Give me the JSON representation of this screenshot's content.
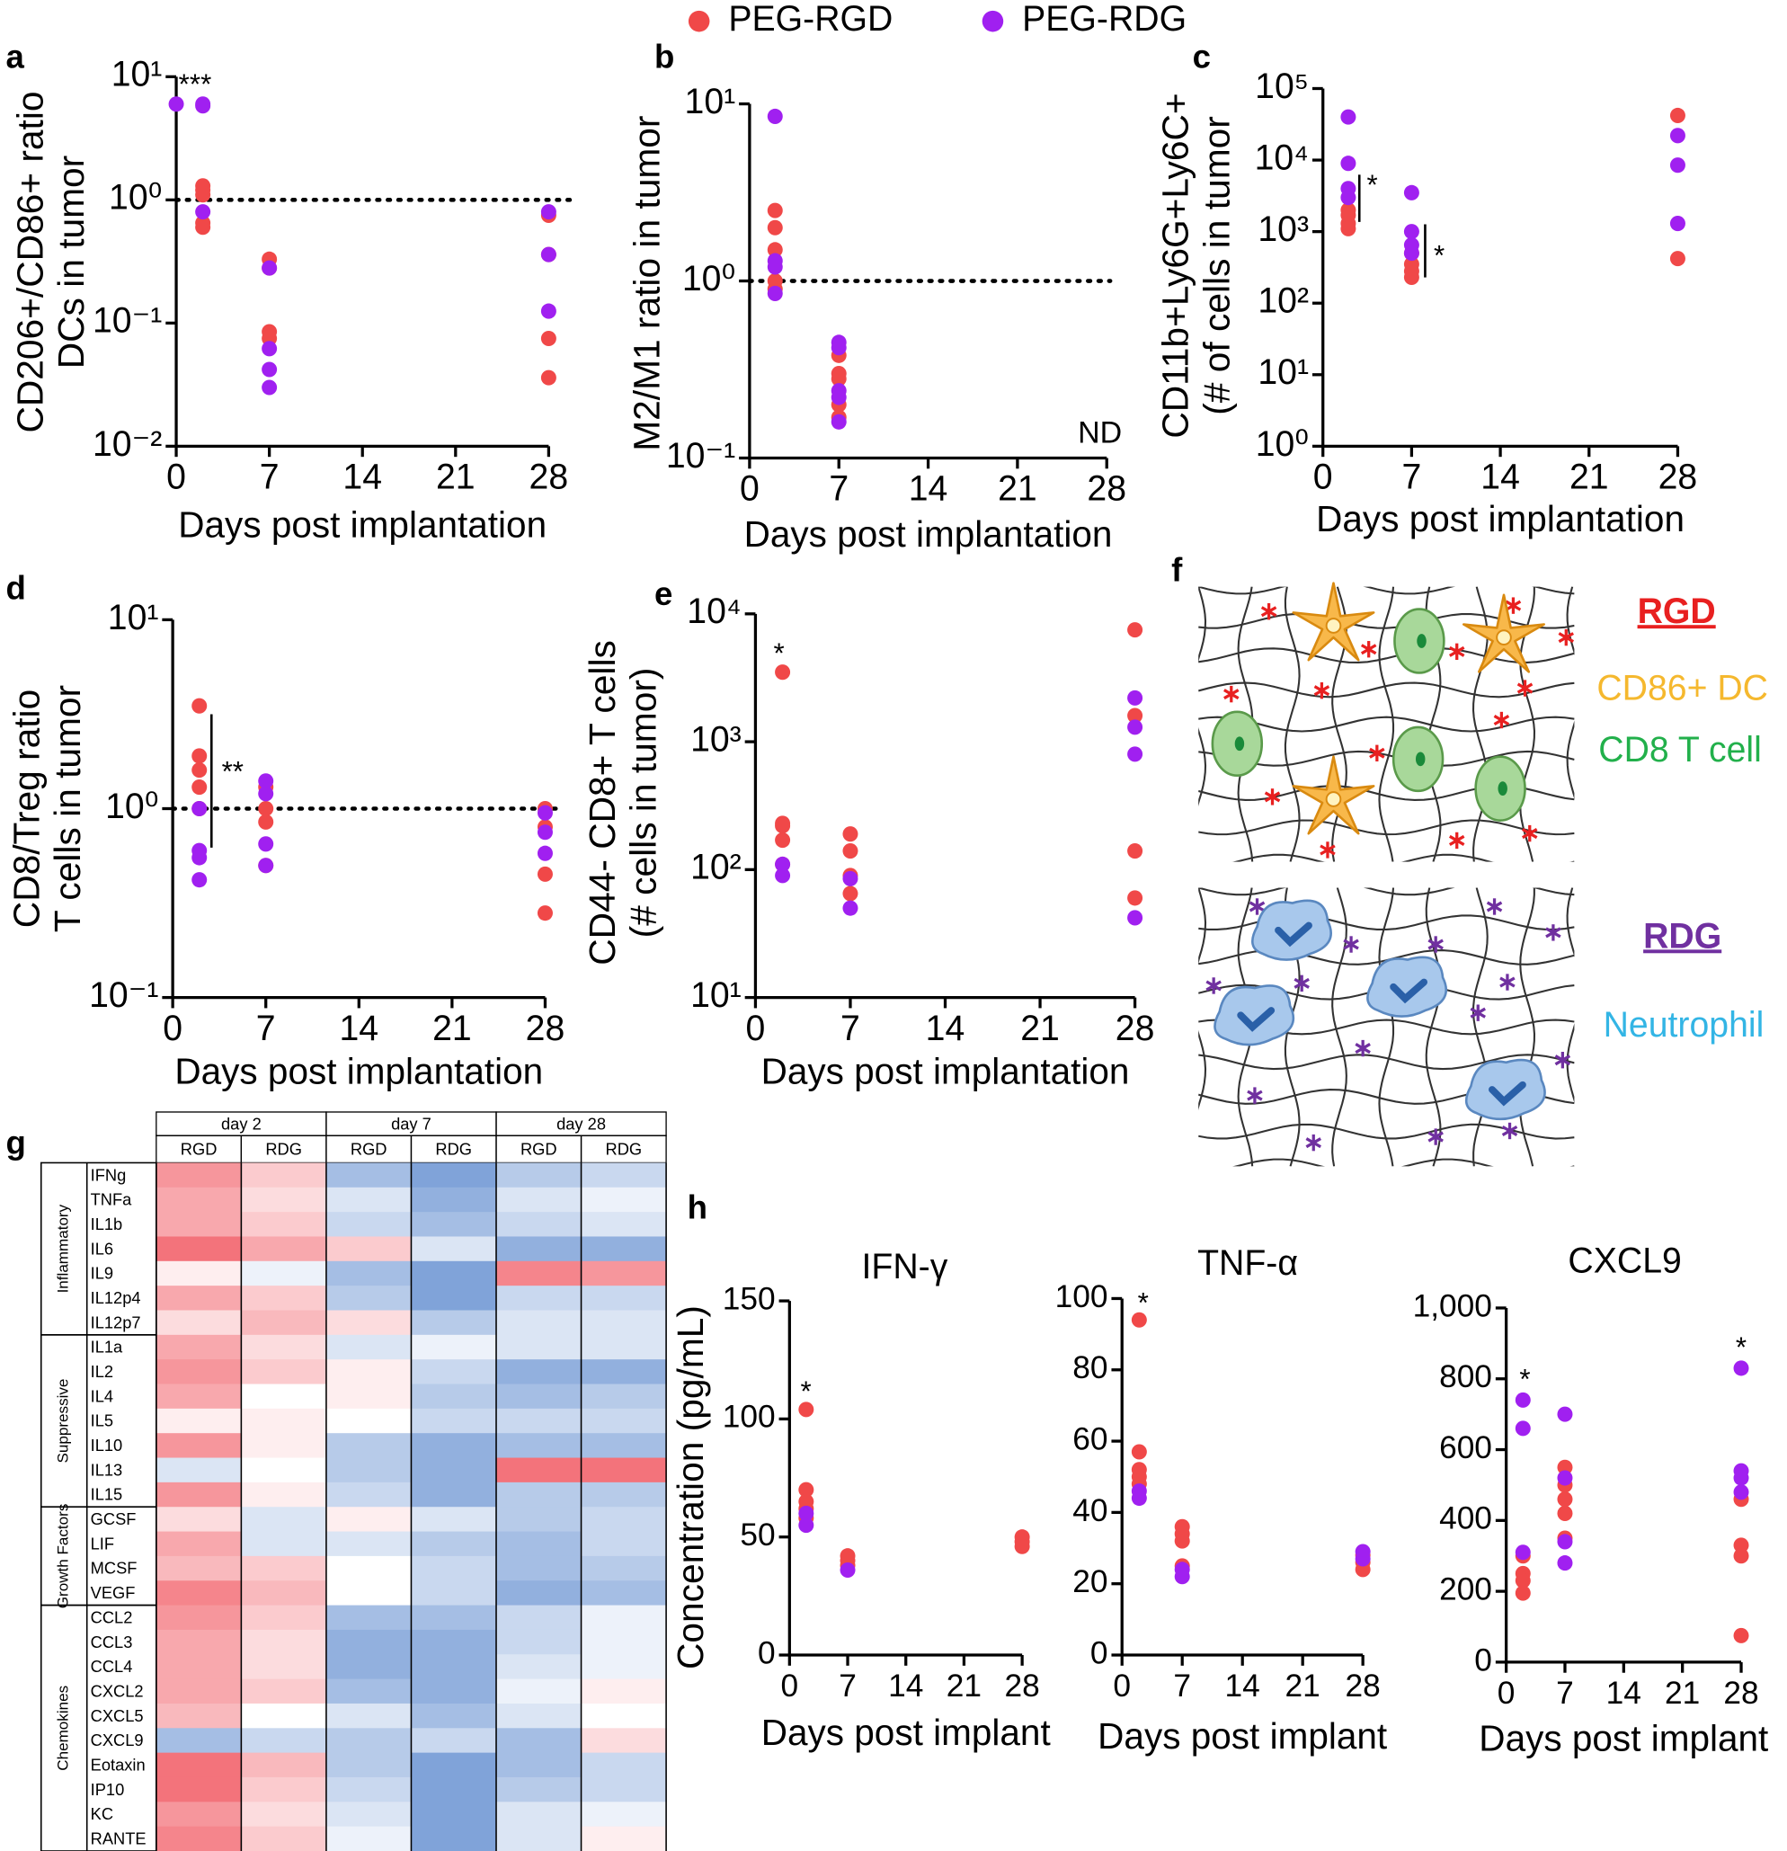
{
  "panel_labels": [
    "a",
    "b",
    "c",
    "d",
    "e",
    "f",
    "g",
    "h"
  ],
  "chart_data": [
    {
      "type": "scatter",
      "xlim": [
        0,
        28
      ],
      "xticks": [
        0,
        7,
        14,
        21,
        28
      ],
      "log_y": true,
      "ylim": [
        0.01,
        10
      ],
      "yticks": [
        {
          "value": 0.01,
          "label": "10⁻²"
        },
        {
          "value": 0.1,
          "label": "10⁻¹"
        },
        {
          "value": 1,
          "label": "10⁰"
        },
        {
          "value": 10,
          "label": "10¹"
        }
      ],
      "xlabel": "Days post implantation",
      "ylabel": [
        "CD206+/CD86+ ratio",
        "DCs in tumor"
      ],
      "hline": 1,
      "annotations": [
        "***"
      ],
      "series": [
        {
          "name": "PEG-RGD",
          "color": "#f04848",
          "x": [
            2,
            2,
            2,
            2,
            2,
            7,
            7,
            7,
            7,
            28,
            28,
            28,
            28
          ],
          "values": [
            1.3,
            1.2,
            1.1,
            0.65,
            0.6,
            0.33,
            0.28,
            0.085,
            0.075,
            0.75,
            0.36,
            0.075,
            0.036
          ]
        },
        {
          "name": "PEG-RDG",
          "color": "#a020f0",
          "x": [
            0,
            2,
            2,
            2,
            7,
            7,
            7,
            7,
            28,
            28,
            28
          ],
          "values": [
            6,
            5.8,
            6,
            0.8,
            0.28,
            0.062,
            0.042,
            0.03,
            0.8,
            0.36,
            0.125
          ]
        }
      ]
    },
    {
      "type": "scatter",
      "xlim": [
        0,
        28
      ],
      "xticks": [
        0,
        7,
        14,
        21,
        28
      ],
      "log_y": true,
      "ylim": [
        0.1,
        10
      ],
      "yticks": [
        {
          "value": 0.1,
          "label": "10⁻¹"
        },
        {
          "value": 1,
          "label": "10⁰"
        },
        {
          "value": 10,
          "label": "10¹"
        }
      ],
      "xlabel": "Days post implantation",
      "ylabel": [
        "M2/M1 ratio in tumor"
      ],
      "hline": 1,
      "annotations": [
        "ND"
      ],
      "series": [
        {
          "color": "#f04848",
          "x": [
            2,
            2,
            2,
            2,
            2,
            7,
            7,
            7,
            7,
            7
          ],
          "values": [
            2.5,
            2.0,
            1.5,
            1.0,
            0.9,
            0.38,
            0.3,
            0.28,
            0.2,
            0.17
          ]
        },
        {
          "color": "#a020f0",
          "x": [
            2,
            2,
            2,
            2,
            7,
            7,
            7,
            7,
            7
          ],
          "values": [
            8.5,
            1.3,
            1.2,
            0.85,
            0.45,
            0.42,
            0.24,
            0.22,
            0.16
          ]
        }
      ]
    },
    {
      "type": "scatter",
      "xlim": [
        0,
        28
      ],
      "xticks": [
        0,
        7,
        14,
        21,
        28
      ],
      "log_y": true,
      "ylim": [
        1,
        100000
      ],
      "yticks": [
        {
          "value": 1,
          "label": "10⁰"
        },
        {
          "value": 10,
          "label": "10¹"
        },
        {
          "value": 100,
          "label": "10²"
        },
        {
          "value": 1000,
          "label": "10³"
        },
        {
          "value": 10000,
          "label": "10⁴"
        },
        {
          "value": 100000,
          "label": "10⁵"
        }
      ],
      "xlabel": "Days post implantation",
      "ylabel": [
        "CD11b+Ly6G+Ly6C+",
        "(# of cells in tumor"
      ],
      "annotations": [
        "*",
        "*"
      ],
      "series": [
        {
          "color": "#f04848",
          "x": [
            2,
            2,
            2,
            2,
            7,
            7,
            7,
            7,
            28,
            28
          ],
          "values": [
            2000,
            1700,
            1300,
            1100,
            500,
            350,
            280,
            230,
            42000,
            420
          ]
        },
        {
          "color": "#a020f0",
          "x": [
            2,
            2,
            2,
            2,
            7,
            7,
            7,
            7,
            28,
            28,
            28
          ],
          "values": [
            40000,
            9000,
            4000,
            3000,
            3500,
            1000,
            650,
            500,
            22000,
            8500,
            1300
          ]
        }
      ]
    },
    {
      "type": "scatter",
      "xlim": [
        0,
        28
      ],
      "xticks": [
        0,
        7,
        14,
        21,
        28
      ],
      "log_y": true,
      "ylim": [
        0.1,
        10
      ],
      "yticks": [
        {
          "value": 0.1,
          "label": "10⁻¹"
        },
        {
          "value": 1,
          "label": "10⁰"
        },
        {
          "value": 10,
          "label": "10¹"
        }
      ],
      "xlabel": "Days post implantation",
      "ylabel": [
        "CD8/Treg ratio",
        "T cells in tumor"
      ],
      "hline": 1,
      "annotations": [
        "**"
      ],
      "series": [
        {
          "color": "#f04848",
          "x": [
            2,
            2,
            2,
            2,
            2,
            7,
            7,
            7,
            7,
            28,
            28,
            28,
            28
          ],
          "values": [
            3.5,
            1.9,
            1.6,
            1.3,
            1.0,
            1.3,
            1.0,
            0.85,
            0.5,
            1.0,
            0.8,
            0.45,
            0.28
          ]
        },
        {
          "color": "#a020f0",
          "x": [
            2,
            2,
            2,
            2,
            7,
            7,
            7,
            7,
            28,
            28,
            28
          ],
          "values": [
            1.0,
            0.6,
            0.55,
            0.42,
            1.4,
            1.2,
            0.65,
            0.5,
            0.95,
            0.75,
            0.58
          ]
        }
      ]
    },
    {
      "type": "scatter",
      "xlim": [
        0,
        28
      ],
      "xticks": [
        0,
        7,
        14,
        21,
        28
      ],
      "log_y": true,
      "ylim": [
        10,
        10000
      ],
      "yticks": [
        {
          "value": 10,
          "label": "10¹"
        },
        {
          "value": 100,
          "label": "10²"
        },
        {
          "value": 1000,
          "label": "10³"
        },
        {
          "value": 10000,
          "label": "10⁴"
        }
      ],
      "xlabel": "Days post implantation",
      "ylabel": [
        "CD44- CD8+ T cells",
        "(# cells in tumor)"
      ],
      "annotations": [
        "*"
      ],
      "series": [
        {
          "color": "#f04848",
          "x": [
            2,
            2,
            2,
            2,
            2,
            7,
            7,
            7,
            7,
            28,
            28,
            28,
            28
          ],
          "values": [
            3500,
            230,
            220,
            170,
            110,
            190,
            140,
            90,
            65,
            7500,
            1600,
            140,
            60
          ]
        },
        {
          "color": "#a020f0",
          "x": [
            2,
            2,
            7,
            7,
            28,
            28,
            28,
            28
          ],
          "values": [
            110,
            90,
            85,
            50,
            2200,
            1300,
            800,
            42
          ]
        }
      ]
    },
    {
      "type": "scatter",
      "title": "IFN-γ",
      "xlim": [
        0,
        28
      ],
      "xticks": [
        0,
        7,
        14,
        21,
        28
      ],
      "ylim": [
        0,
        150
      ],
      "yticks": [
        0,
        50,
        100,
        150
      ],
      "xlabel": "Days post implant",
      "ylabel": [
        "Concentration (pg/mL)"
      ],
      "annotations": [
        "*"
      ],
      "series": [
        {
          "color": "#f04848",
          "x": [
            2,
            2,
            2,
            2,
            2,
            7,
            7,
            7,
            28,
            28,
            28
          ],
          "values": [
            104,
            70,
            65,
            62,
            58,
            42,
            40,
            38,
            50,
            48,
            46
          ]
        },
        {
          "color": "#a020f0",
          "x": [
            2,
            2,
            7
          ],
          "values": [
            60,
            55,
            36
          ]
        }
      ]
    },
    {
      "type": "scatter",
      "title": "TNF-α",
      "xlim": [
        0,
        28
      ],
      "xticks": [
        0,
        7,
        14,
        21,
        28
      ],
      "ylim": [
        0,
        100
      ],
      "yticks": [
        0,
        20,
        40,
        60,
        80,
        100
      ],
      "xlabel": "Days post implant",
      "annotations": [
        "*"
      ],
      "series": [
        {
          "color": "#f04848",
          "x": [
            2,
            2,
            2,
            2,
            2,
            7,
            7,
            7,
            7,
            28,
            28,
            28
          ],
          "values": [
            94,
            57,
            52,
            50,
            48,
            36,
            34,
            32,
            25,
            28,
            26,
            24
          ]
        },
        {
          "color": "#a020f0",
          "x": [
            2,
            2,
            7,
            7,
            28,
            28
          ],
          "values": [
            46,
            44,
            24,
            22,
            29,
            27
          ]
        }
      ]
    },
    {
      "type": "scatter",
      "title": "CXCL9",
      "xlim": [
        0,
        28
      ],
      "xticks": [
        0,
        7,
        14,
        21,
        28
      ],
      "ylim": [
        0,
        1000
      ],
      "yticks": [
        0,
        200,
        400,
        600,
        800,
        {
          "value": 1000,
          "label": "1,000"
        }
      ],
      "xlabel": "Days post implant",
      "annotations": [
        "*",
        "*"
      ],
      "series": [
        {
          "color": "#f04848",
          "x": [
            2,
            2,
            2,
            2,
            7,
            7,
            7,
            7,
            7,
            28,
            28,
            28,
            28
          ],
          "values": [
            300,
            250,
            230,
            195,
            550,
            500,
            460,
            420,
            350,
            460,
            330,
            300,
            75
          ]
        },
        {
          "color": "#a020f0",
          "x": [
            2,
            2,
            2,
            7,
            7,
            7,
            7,
            28,
            28,
            28,
            28
          ],
          "values": [
            740,
            660,
            310,
            700,
            520,
            340,
            280,
            830,
            540,
            520,
            480
          ]
        }
      ]
    },
    {
      "type": "heatmap",
      "column_groups": [
        "day 2",
        "day 7",
        "day 28"
      ],
      "subgroups": [
        "RGD",
        "RDG"
      ],
      "colors": {
        "low": "#4a7cc8",
        "mid": "#ffffff",
        "high": "#f0505a"
      },
      "zlim": [
        -1,
        1
      ],
      "row_groups": [
        {
          "name": "Inflammatory",
          "rows": [
            "IFNg",
            "TNFa",
            "IL1b",
            "IL6",
            "IL9",
            "IL12p4",
            "IL12p7"
          ]
        },
        {
          "name": "Suppressive",
          "rows": [
            "IL1a",
            "IL2",
            "IL4",
            "IL5",
            "IL10",
            "IL13",
            "IL15"
          ]
        },
        {
          "name": "Growth Factors",
          "rows": [
            "GCSF",
            "LIF",
            "MCSF",
            "VEGF"
          ]
        },
        {
          "name": "Chemokines",
          "rows": [
            "CCL2",
            "CCL3",
            "CCL4",
            "CXCL2",
            "CXCL5",
            "CXCL9",
            "Eotaxin",
            "IP10",
            "KC",
            "RANTE"
          ]
        }
      ],
      "values": [
        [
          0.6,
          0.3,
          -0.5,
          -0.7,
          -0.4,
          -0.3
        ],
        [
          0.5,
          0.2,
          -0.2,
          -0.6,
          -0.2,
          -0.1
        ],
        [
          0.5,
          0.3,
          -0.3,
          -0.5,
          -0.3,
          -0.2
        ],
        [
          0.8,
          0.5,
          0.3,
          -0.2,
          -0.6,
          -0.6
        ],
        [
          0.1,
          -0.1,
          -0.5,
          -0.7,
          0.7,
          0.6
        ],
        [
          0.5,
          0.3,
          -0.4,
          -0.7,
          -0.3,
          -0.3
        ],
        [
          0.2,
          0.4,
          0.2,
          -0.4,
          -0.2,
          -0.2
        ],
        [
          0.5,
          0.2,
          -0.2,
          -0.1,
          -0.2,
          -0.2
        ],
        [
          0.6,
          0.3,
          0.1,
          -0.3,
          -0.6,
          -0.6
        ],
        [
          0.5,
          0.0,
          0.1,
          -0.4,
          -0.5,
          -0.4
        ],
        [
          0.1,
          0.1,
          0.0,
          -0.3,
          -0.3,
          -0.3
        ],
        [
          0.6,
          0.1,
          -0.4,
          -0.6,
          -0.5,
          -0.5
        ],
        [
          -0.2,
          0.0,
          -0.4,
          -0.6,
          0.8,
          0.8
        ],
        [
          0.6,
          0.1,
          -0.3,
          -0.6,
          -0.4,
          -0.4
        ],
        [
          0.2,
          -0.2,
          0.1,
          -0.2,
          -0.4,
          -0.3
        ],
        [
          0.5,
          -0.2,
          -0.2,
          -0.4,
          -0.5,
          -0.3
        ],
        [
          0.4,
          0.3,
          0.0,
          -0.3,
          -0.5,
          -0.4
        ],
        [
          0.7,
          0.4,
          0.0,
          -0.3,
          -0.6,
          -0.5
        ],
        [
          0.6,
          0.3,
          -0.5,
          -0.5,
          -0.3,
          -0.1
        ],
        [
          0.5,
          0.2,
          -0.6,
          -0.6,
          -0.3,
          -0.1
        ],
        [
          0.5,
          0.2,
          -0.6,
          -0.6,
          -0.2,
          -0.1
        ],
        [
          0.5,
          0.3,
          -0.5,
          -0.6,
          -0.1,
          0.1
        ],
        [
          0.4,
          0.0,
          -0.2,
          -0.5,
          -0.2,
          0.0
        ],
        [
          -0.5,
          -0.3,
          -0.4,
          -0.3,
          -0.5,
          0.2
        ],
        [
          0.8,
          0.4,
          -0.4,
          -0.7,
          -0.5,
          -0.3
        ],
        [
          0.8,
          0.3,
          -0.3,
          -0.7,
          -0.4,
          -0.3
        ],
        [
          0.6,
          0.2,
          -0.2,
          -0.7,
          -0.2,
          -0.1
        ],
        [
          0.7,
          0.3,
          -0.1,
          -0.7,
          -0.2,
          0.1
        ]
      ]
    }
  ],
  "panel_f": {
    "top": {
      "title": "RGD",
      "labels": [
        "CD86+ DC",
        "CD8 T cell"
      ]
    },
    "bottom": {
      "title": "RDG",
      "labels": [
        "Neutrophil"
      ]
    }
  }
}
